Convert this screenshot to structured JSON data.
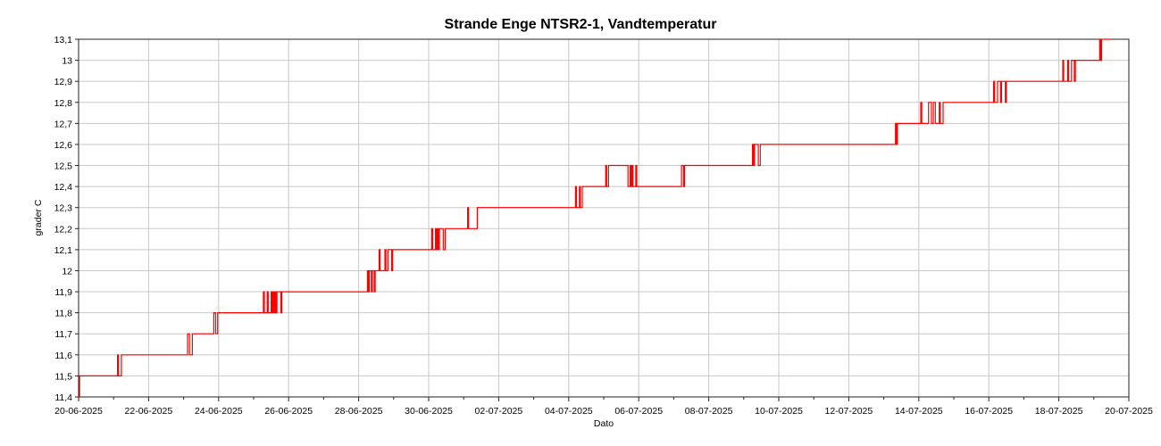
{
  "chart_data": {
    "type": "line",
    "title": "Strande Enge NTSR2-1, Vandtemperatur",
    "xlabel": "Dato",
    "ylabel": "grader C",
    "xlim": [
      "2025-06-20",
      "2025-07-20"
    ],
    "ylim": [
      11.4,
      13.1
    ],
    "x_ticks": [
      "20-06-2025",
      "22-06-2025",
      "24-06-2025",
      "26-06-2025",
      "28-06-2025",
      "30-06-2025",
      "02-07-2025",
      "04-07-2025",
      "06-07-2025",
      "08-07-2025",
      "10-07-2025",
      "12-07-2025",
      "14-07-2025",
      "16-07-2025",
      "18-07-2025",
      "20-07-2025"
    ],
    "y_ticks": [
      "11,4",
      "11,5",
      "11,6",
      "11,7",
      "11,8",
      "11,9",
      "12",
      "12,1",
      "12,2",
      "12,3",
      "12,4",
      "12,5",
      "12,6",
      "12,7",
      "12,8",
      "12,9",
      "13",
      "13,1"
    ],
    "grid": true,
    "legend": "none",
    "series": [
      {
        "color": "#ff0000",
        "x": [
          "2025-06-20 00:00",
          "2025-06-20 01:00",
          "2025-06-21 00:00",
          "2025-06-21 06:00",
          "2025-06-22 00:00",
          "2025-06-23 00:00",
          "2025-06-23 06:00",
          "2025-06-23 18:00",
          "2025-06-24 00:00",
          "2025-06-24 18:00",
          "2025-06-25 00:00",
          "2025-06-26 00:00",
          "2025-06-27 00:00",
          "2025-06-27 12:00",
          "2025-06-28 00:00",
          "2025-06-28 12:00",
          "2025-06-29 00:00",
          "2025-06-30 00:00",
          "2025-06-30 12:00",
          "2025-07-01 00:00",
          "2025-07-01 12:00",
          "2025-07-02 00:00",
          "2025-07-03 00:00",
          "2025-07-04 00:00",
          "2025-07-04 12:00",
          "2025-07-05 00:00",
          "2025-07-05 06:00",
          "2025-07-05 12:00",
          "2025-07-06 00:00",
          "2025-07-07 00:00",
          "2025-07-07 12:00",
          "2025-07-08 00:00",
          "2025-07-09 00:00",
          "2025-07-09 12:00",
          "2025-07-10 00:00",
          "2025-07-11 00:00",
          "2025-07-12 00:00",
          "2025-07-13 00:00",
          "2025-07-13 12:00",
          "2025-07-14 00:00",
          "2025-07-14 18:00",
          "2025-07-15 00:00",
          "2025-07-16 00:00",
          "2025-07-16 12:00",
          "2025-07-17 00:00",
          "2025-07-18 00:00",
          "2025-07-18 12:00",
          "2025-07-19 00:00",
          "2025-07-19 06:00",
          "2025-07-19 12:00"
        ],
        "y": [
          11.4,
          11.5,
          11.5,
          11.6,
          11.6,
          11.6,
          11.7,
          11.7,
          11.8,
          11.8,
          11.8,
          11.9,
          11.9,
          11.9,
          11.9,
          12.0,
          12.1,
          12.1,
          12.2,
          12.2,
          12.3,
          12.3,
          12.3,
          12.3,
          12.4,
          12.4,
          12.5,
          12.5,
          12.4,
          12.4,
          12.5,
          12.5,
          12.5,
          12.6,
          12.6,
          12.6,
          12.6,
          12.6,
          12.7,
          12.7,
          12.8,
          12.8,
          12.8,
          12.9,
          12.9,
          12.9,
          13.0,
          13.0,
          13.1,
          13.1
        ]
      }
    ]
  }
}
